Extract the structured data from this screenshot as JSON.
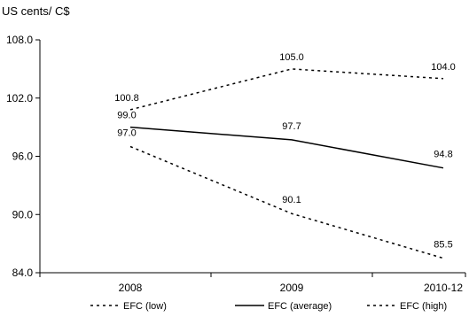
{
  "chart_data": {
    "type": "line",
    "title": "",
    "ylabel": "US cents/ C$",
    "xlabel": "",
    "categories": [
      "2008",
      "2009",
      "2010-12"
    ],
    "ylim": [
      84.0,
      108.0
    ],
    "yticks": [
      "84.0",
      "90.0",
      "96.0",
      "102.0",
      "108.0"
    ],
    "ytick_values": [
      84,
      90,
      96,
      102,
      108
    ],
    "grid": false,
    "legend_position": "bottom",
    "series": [
      {
        "name": "EFC (low)",
        "values": [
          97.0,
          90.1,
          85.5
        ],
        "labels": [
          "97.0",
          "90.1",
          "85.5"
        ],
        "style": "dashed",
        "color": "#000000"
      },
      {
        "name": "EFC (average)",
        "values": [
          99.0,
          97.7,
          94.8
        ],
        "labels": [
          "99.0",
          "97.7",
          "94.8"
        ],
        "style": "solid",
        "color": "#000000"
      },
      {
        "name": "EFC (high)",
        "values": [
          100.8,
          105.0,
          104.0
        ],
        "labels": [
          "100.8",
          "105.0",
          "104.0"
        ],
        "style": "dashed",
        "color": "#000000"
      }
    ]
  }
}
